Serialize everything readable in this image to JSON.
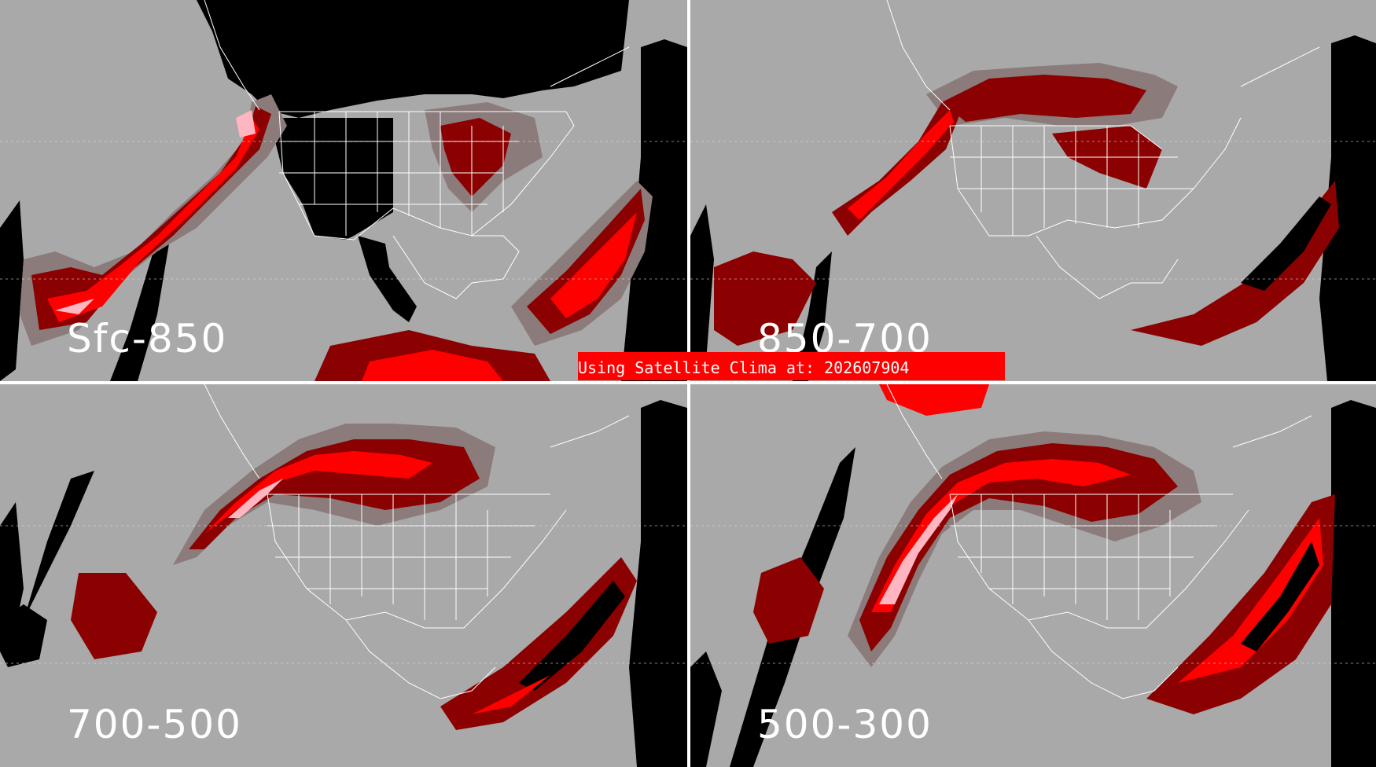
{
  "banner": {
    "text": "Using Satellite Clima at: 202607904"
  },
  "colors": {
    "background": "#a9a9a9",
    "nodata": "#000000",
    "low": "#8b7b7b",
    "mid": "#8b0000",
    "high": "#ff0000",
    "max": "#ffb6c1",
    "boundaries": "#ffffff"
  },
  "panels": [
    {
      "id": "p-tl",
      "label": "Sfc-850"
    },
    {
      "id": "p-tr",
      "label": "850-700"
    },
    {
      "id": "p-bl",
      "label": "700-500"
    },
    {
      "id": "p-br",
      "label": "500-300"
    }
  ]
}
